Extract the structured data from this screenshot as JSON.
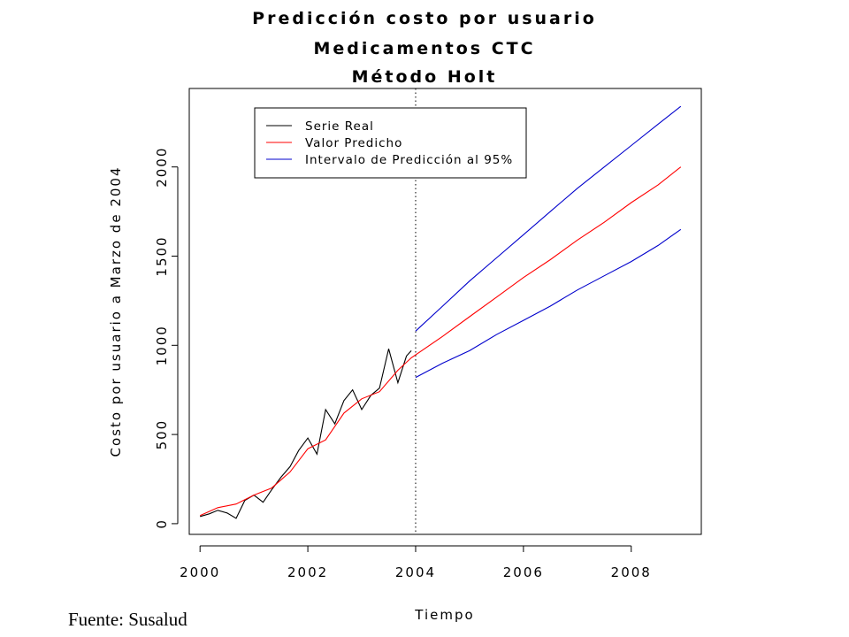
{
  "chart_data": {
    "type": "line",
    "title": [
      "Predicción costo por usuario",
      "Medicamentos CTC",
      "Método Holt"
    ],
    "xlabel": "Tiempo",
    "ylabel": "Costo por usuario a Marzo de 2004",
    "xlim": [
      1999.8,
      2009.3
    ],
    "ylim": [
      -60,
      2440
    ],
    "x_ticks": [
      2000,
      2002,
      2004,
      2006,
      2008
    ],
    "y_ticks": [
      0,
      500,
      1000,
      1500,
      2000
    ],
    "forecast_start_line": 2004,
    "legend": {
      "placement": "top-left",
      "entries": [
        {
          "label": "Serie Real",
          "color": "#000000"
        },
        {
          "label": "Valor Predicho",
          "color": "#ff0000"
        },
        {
          "label": "Intervalo de Predicción al 95%",
          "color": "#0000cc"
        }
      ]
    },
    "series": [
      {
        "name": "Serie Real",
        "color": "#000000",
        "x": [
          2000.0,
          2000.17,
          2000.33,
          2000.5,
          2000.67,
          2000.83,
          2001.0,
          2001.17,
          2001.33,
          2001.5,
          2001.67,
          2001.83,
          2002.0,
          2002.17,
          2002.33,
          2002.5,
          2002.67,
          2002.83,
          2003.0,
          2003.17,
          2003.33,
          2003.5,
          2003.67,
          2003.83,
          2003.92
        ],
        "y": [
          40,
          55,
          75,
          60,
          30,
          130,
          160,
          120,
          190,
          260,
          320,
          410,
          480,
          390,
          640,
          560,
          690,
          750,
          640,
          720,
          760,
          980,
          790,
          940,
          970
        ]
      },
      {
        "name": "Valor Predicho",
        "color": "#ff0000",
        "x": [
          2000.0,
          2000.33,
          2000.67,
          2001.0,
          2001.33,
          2001.67,
          2002.0,
          2002.33,
          2002.67,
          2003.0,
          2003.33,
          2003.67,
          2003.92,
          2004.5,
          2005.0,
          2005.5,
          2006.0,
          2006.5,
          2007.0,
          2007.5,
          2008.0,
          2008.5,
          2008.92
        ],
        "y": [
          45,
          90,
          110,
          160,
          200,
          290,
          420,
          470,
          620,
          700,
          740,
          860,
          930,
          1050,
          1160,
          1270,
          1380,
          1480,
          1590,
          1690,
          1800,
          1900,
          2000
        ]
      },
      {
        "name": "Intervalo de Predicción al 95% (superior)",
        "color": "#0000cc",
        "x": [
          2004.0,
          2004.5,
          2005.0,
          2005.5,
          2006.0,
          2006.5,
          2007.0,
          2007.5,
          2008.0,
          2008.5,
          2008.92
        ],
        "y": [
          1080,
          1220,
          1360,
          1490,
          1620,
          1750,
          1880,
          2000,
          2120,
          2240,
          2340
        ]
      },
      {
        "name": "Intervalo de Predicción al 95% (inferior)",
        "color": "#0000cc",
        "x": [
          2004.0,
          2004.5,
          2005.0,
          2005.5,
          2006.0,
          2006.5,
          2007.0,
          2007.5,
          2008.0,
          2008.5,
          2008.92
        ],
        "y": [
          820,
          900,
          970,
          1060,
          1140,
          1220,
          1310,
          1390,
          1470,
          1560,
          1650
        ]
      }
    ]
  },
  "source": "Fuente: Susalud"
}
